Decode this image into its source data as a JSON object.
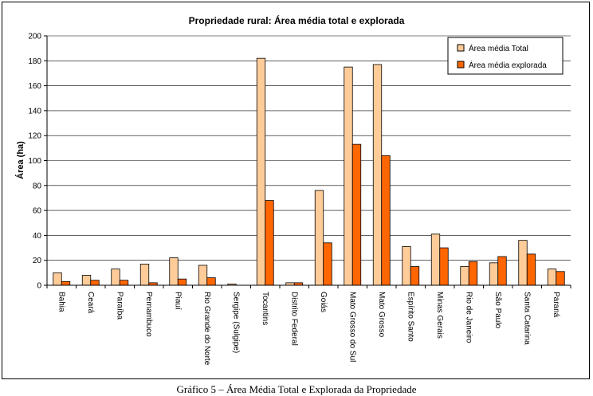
{
  "caption": "Gráfico 5 – Área Média Total e Explorada da Propriedade",
  "chart_data": {
    "type": "bar",
    "title": "Propriedade rural: Área média total e explorada",
    "xlabel": "",
    "ylabel": "Área (ha)",
    "ylim": [
      0,
      200
    ],
    "yticks": [
      0,
      20,
      40,
      60,
      80,
      100,
      120,
      140,
      160,
      180,
      200
    ],
    "grid": true,
    "legend_position": "top-right",
    "categories": [
      "Bahia",
      "Ceará",
      "Paraíba",
      "Pernambuco",
      "Piauí",
      "Rio Grande do Norte",
      "Sergipe (Sulgipe)",
      "Tocantins",
      "Distrito Federal",
      "Goiás",
      "Mato Grosso do Sul",
      "Mato Grosso",
      "Espírito Santo",
      "Minas Gerais",
      "Rio de Janeiro",
      "São Paulo",
      "Santa Catarina",
      "Paraná"
    ],
    "series": [
      {
        "name": "Área média Total",
        "color": "#FFCC99",
        "values": [
          10,
          8,
          13,
          17,
          22,
          16,
          1,
          182,
          2,
          76,
          175,
          177,
          31,
          41,
          15,
          18,
          36,
          13
        ]
      },
      {
        "name": "Área média explorada",
        "color": "#FF6600",
        "values": [
          3,
          4,
          4,
          2,
          5,
          6,
          0,
          68,
          2,
          34,
          113,
          104,
          15,
          30,
          19,
          23,
          25,
          11
        ]
      }
    ]
  }
}
